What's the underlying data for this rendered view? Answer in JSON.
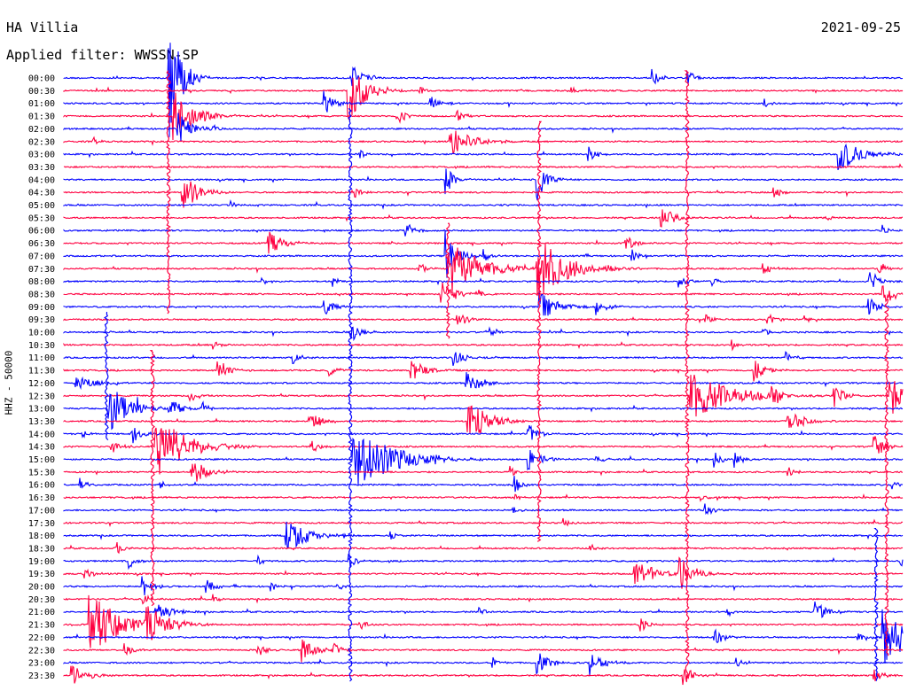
{
  "header": {
    "station": "HA Villia",
    "date": "2021-09-25",
    "filter": "Applied filter: WWSSN-SP"
  },
  "chart_data": {
    "type": "line",
    "ylabel": "HHZ - 50000",
    "row_labels": [
      "00:00",
      "00:30",
      "01:00",
      "01:30",
      "02:00",
      "02:30",
      "03:00",
      "03:30",
      "04:00",
      "04:30",
      "05:00",
      "05:30",
      "06:00",
      "06:30",
      "07:00",
      "07:30",
      "08:00",
      "08:30",
      "09:00",
      "09:30",
      "10:00",
      "10:30",
      "11:00",
      "11:30",
      "12:00",
      "12:30",
      "13:00",
      "13:30",
      "14:00",
      "14:30",
      "15:00",
      "15:30",
      "16:00",
      "16:30",
      "17:00",
      "17:30",
      "18:00",
      "18:30",
      "19:00",
      "19:30",
      "20:00",
      "20:30",
      "21:00",
      "21:30",
      "22:00",
      "22:30",
      "23:00",
      "23:30"
    ],
    "colors": [
      "#0000ff",
      "#ff0040"
    ],
    "grid": false
  }
}
